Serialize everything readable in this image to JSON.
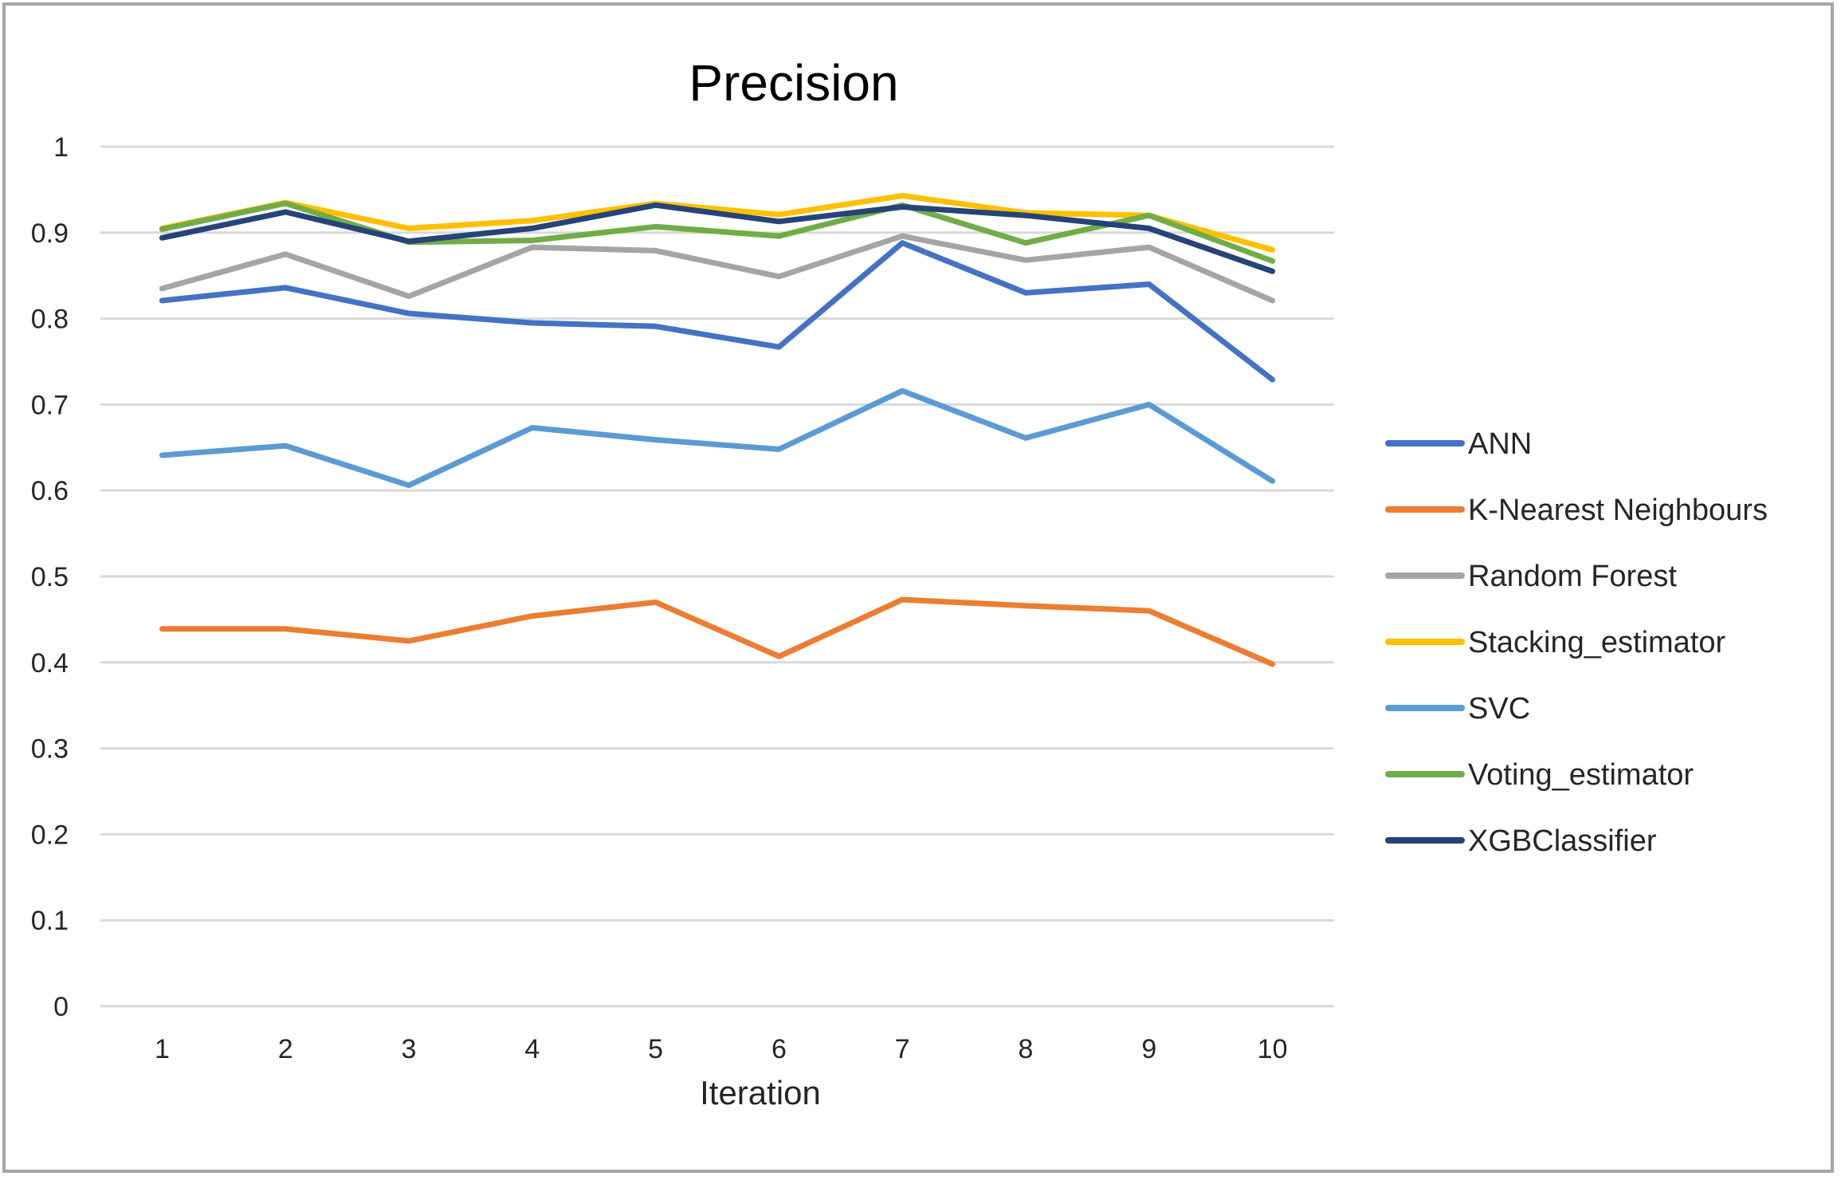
{
  "chart_data": {
    "type": "line",
    "title": "Precision",
    "xlabel": "Iteration",
    "ylabel": "",
    "ylim": [
      0,
      1
    ],
    "yticks": [
      "0",
      "0.1",
      "0.2",
      "0.3",
      "0.4",
      "0.5",
      "0.6",
      "0.7",
      "0.8",
      "0.9",
      "1"
    ],
    "categories": [
      "1",
      "2",
      "3",
      "4",
      "5",
      "6",
      "7",
      "8",
      "9",
      "10"
    ],
    "grid": true,
    "legend_position": "right",
    "series": [
      {
        "name": "ANN",
        "color": "#4472c4",
        "values": [
          0.821,
          0.836,
          0.806,
          0.795,
          0.791,
          0.767,
          0.888,
          0.83,
          0.84,
          0.729
        ]
      },
      {
        "name": "K-Nearest Neighbours",
        "color": "#ed7d31",
        "values": [
          0.439,
          0.439,
          0.425,
          0.454,
          0.47,
          0.407,
          0.473,
          0.466,
          0.46,
          0.398
        ]
      },
      {
        "name": "Random Forest",
        "color": "#a5a5a5",
        "values": [
          0.835,
          0.875,
          0.826,
          0.883,
          0.879,
          0.849,
          0.896,
          0.868,
          0.883,
          0.821
        ]
      },
      {
        "name": "Stacking_estimator",
        "color": "#ffc000",
        "values": [
          0.905,
          0.935,
          0.905,
          0.914,
          0.934,
          0.921,
          0.943,
          0.923,
          0.92,
          0.88
        ]
      },
      {
        "name": "SVC",
        "color": "#5b9bd5",
        "values": [
          0.641,
          0.652,
          0.606,
          0.673,
          0.659,
          0.648,
          0.716,
          0.661,
          0.7,
          0.611
        ]
      },
      {
        "name": "Voting_estimator",
        "color": "#70ad47",
        "values": [
          0.904,
          0.934,
          0.889,
          0.891,
          0.907,
          0.896,
          0.932,
          0.888,
          0.92,
          0.867
        ]
      },
      {
        "name": "XGBClassifier",
        "color": "#264478",
        "values": [
          0.894,
          0.924,
          0.89,
          0.905,
          0.932,
          0.913,
          0.93,
          0.92,
          0.905,
          0.855
        ]
      }
    ]
  }
}
